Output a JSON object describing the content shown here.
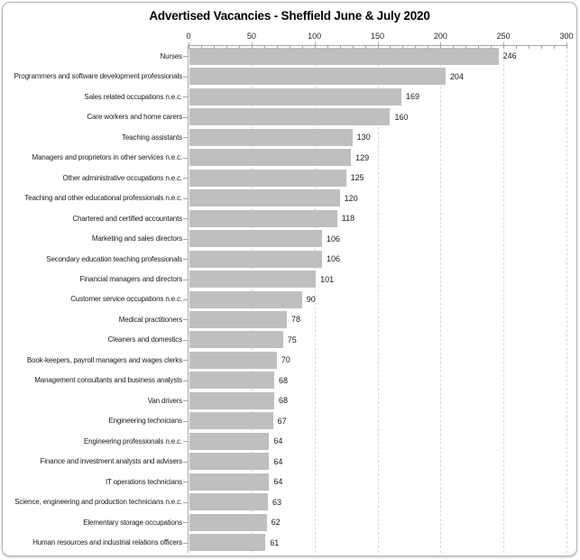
{
  "chart_data": {
    "type": "bar",
    "orientation": "horizontal",
    "title": "Advertised Vacancies - Sheffield June & July 2020",
    "categories": [
      "Nurses",
      "Programmers and software development professionals",
      "Sales related occupations n.e.c.",
      "Care workers and home carers",
      "Teaching assistants",
      "Managers and proprietors in other services n.e.c.",
      "Other administrative occupations n.e.c.",
      "Teaching and other educational professionals n.e.c.",
      "Chartered and certified accountants",
      "Marketing and sales directors",
      "Secondary education teaching professionals",
      "Financial managers and directors",
      "Customer service occupations n.e.c.",
      "Medical practitioners",
      "Cleaners and domestics",
      "Book-keepers, payroll managers and wages clerks",
      "Management consultants and business analysts",
      "Van drivers",
      "Engineering technicians",
      "Engineering professionals n.e.c.",
      "Finance and investment analysts and advisers",
      "IT operations technicians",
      "Science, engineering and production technicians n.e.c.",
      "Elementary storage occupations",
      "Human resources and industrial relations officers"
    ],
    "values": [
      246,
      204,
      169,
      160,
      130,
      129,
      125,
      120,
      118,
      106,
      106,
      101,
      90,
      78,
      75,
      70,
      68,
      68,
      67,
      64,
      64,
      64,
      63,
      62,
      61
    ],
    "xlabel": "",
    "ylabel": "",
    "xlim": [
      0,
      300
    ],
    "x_ticks": [
      0,
      50,
      100,
      150,
      200,
      250,
      300
    ],
    "x_minor_unit": 10,
    "grid": "vertical-dashed-major",
    "legend": "none",
    "data_labels": "outside-end",
    "colors": {
      "bar_fill": "#bfbfbf",
      "axis_line": "#a6a6a6",
      "gridline": "#d9d9d9",
      "label_text": "#1a1a1a",
      "tick_text": "#262626",
      "title_text": "#000000",
      "frame_border": "#b5b5b5",
      "background": "#ffffff"
    }
  }
}
